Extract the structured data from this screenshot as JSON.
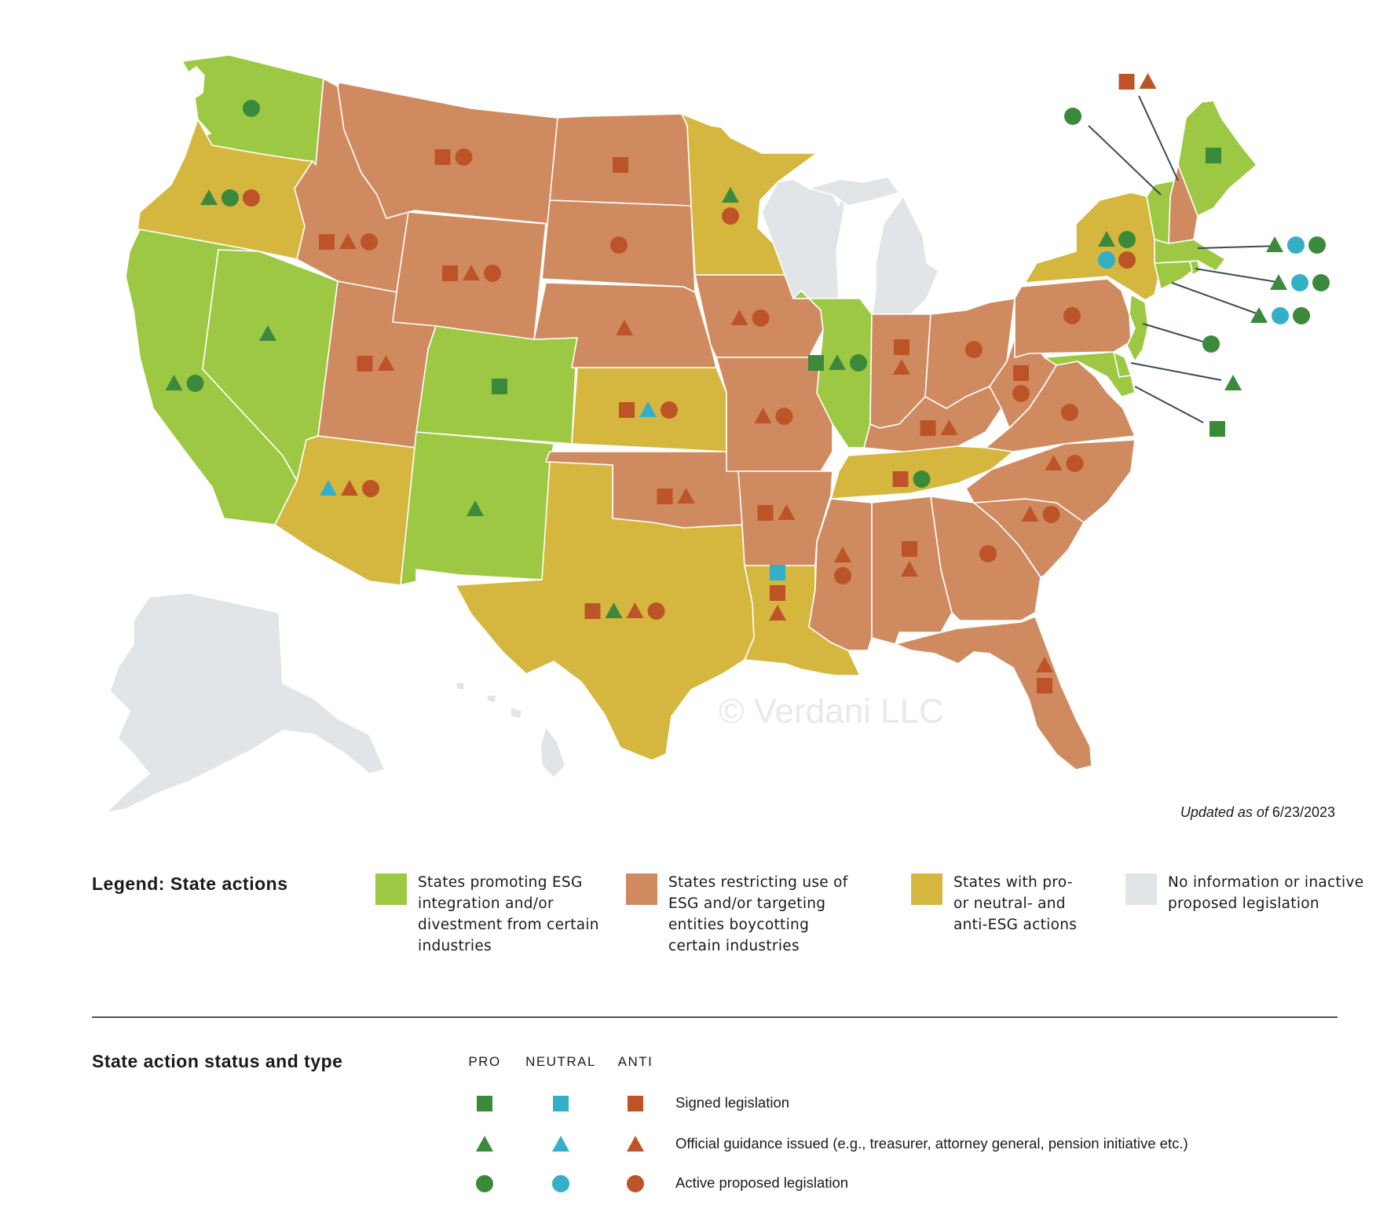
{
  "colors": {
    "pro_state": "#9dc843",
    "anti_state": "#cf8a60",
    "mixed_state": "#d5b740",
    "no_info": "#e1e5e8",
    "pro_marker": "#3b8a3b",
    "neutral_marker": "#33b0c8",
    "anti_marker": "#bd5427",
    "leader_line": "#3b4a55",
    "state_border": "#ffffff"
  },
  "watermark": "© Verdani LLC",
  "updated": {
    "label": "Updated as of",
    "date": "6/23/2023"
  },
  "legend": {
    "title": "Legend: State actions",
    "items": [
      {
        "category": "pro",
        "color": "#9dc843",
        "lines": [
          "States promoting ESG",
          "integration and/or",
          "divestment from certain",
          "industries"
        ]
      },
      {
        "category": "anti",
        "color": "#cf8a60",
        "lines": [
          "States restricting use of",
          "ESG and/or targeting",
          "entities boycotting",
          "certain industries"
        ]
      },
      {
        "category": "mixed",
        "color": "#d5b740",
        "lines": [
          "States with pro-",
          "or neutral- and",
          "anti-ESG actions"
        ]
      },
      {
        "category": "none",
        "color": "#e1e5e8",
        "lines": [
          "No information or inactive",
          "proposed legislation"
        ]
      }
    ]
  },
  "status": {
    "title": "State action status and type",
    "columns": [
      {
        "label": "PRO",
        "color": "#3b8a3b"
      },
      {
        "label": "NEUTRAL",
        "color": "#33b0c8"
      },
      {
        "label": "ANTI",
        "color": "#bd5427"
      }
    ],
    "rows": [
      {
        "shape": "square",
        "label": "Signed legislation"
      },
      {
        "shape": "triangle",
        "label": "Official guidance issued (e.g., treasurer, attorney general, pension initiative etc.)"
      },
      {
        "shape": "circle",
        "label": "Active proposed legislation"
      }
    ]
  },
  "states": [
    {
      "name": "Washington",
      "category": "pro",
      "markers": [
        "pro-circle"
      ]
    },
    {
      "name": "Oregon",
      "category": "mixed",
      "markers": [
        "pro-triangle",
        "pro-circle",
        "anti-circle"
      ]
    },
    {
      "name": "California",
      "category": "pro",
      "markers": [
        "pro-triangle",
        "pro-circle"
      ]
    },
    {
      "name": "Nevada",
      "category": "pro",
      "markers": [
        "pro-triangle"
      ]
    },
    {
      "name": "Idaho",
      "category": "anti",
      "markers": [
        "anti-square",
        "anti-triangle",
        "anti-circle"
      ]
    },
    {
      "name": "Montana",
      "category": "anti",
      "markers": [
        "anti-square",
        "anti-circle"
      ]
    },
    {
      "name": "Wyoming",
      "category": "anti",
      "markers": [
        "anti-square",
        "anti-triangle",
        "anti-circle"
      ]
    },
    {
      "name": "Utah",
      "category": "anti",
      "markers": [
        "anti-square",
        "anti-triangle"
      ]
    },
    {
      "name": "Arizona",
      "category": "mixed",
      "markers": [
        "neutral-triangle",
        "anti-triangle",
        "anti-circle"
      ]
    },
    {
      "name": "Colorado",
      "category": "pro",
      "markers": [
        "pro-square"
      ]
    },
    {
      "name": "New Mexico",
      "category": "pro",
      "markers": [
        "pro-triangle"
      ]
    },
    {
      "name": "North Dakota",
      "category": "anti",
      "markers": [
        "anti-square"
      ]
    },
    {
      "name": "South Dakota",
      "category": "anti",
      "markers": [
        "anti-circle"
      ]
    },
    {
      "name": "Nebraska",
      "category": "anti",
      "markers": [
        "anti-triangle"
      ]
    },
    {
      "name": "Kansas",
      "category": "mixed",
      "markers": [
        "anti-square",
        "neutral-triangle",
        "anti-circle"
      ]
    },
    {
      "name": "Oklahoma",
      "category": "anti",
      "markers": [
        "anti-square",
        "anti-triangle"
      ]
    },
    {
      "name": "Texas",
      "category": "mixed",
      "markers": [
        "anti-square",
        "pro-triangle",
        "anti-triangle",
        "anti-circle"
      ]
    },
    {
      "name": "Minnesota",
      "category": "mixed",
      "markers": [
        "pro-triangle",
        "anti-circle"
      ]
    },
    {
      "name": "Iowa",
      "category": "anti",
      "markers": [
        "anti-triangle",
        "anti-circle"
      ]
    },
    {
      "name": "Missouri",
      "category": "anti",
      "markers": [
        "anti-triangle",
        "anti-circle"
      ]
    },
    {
      "name": "Arkansas",
      "category": "anti",
      "markers": [
        "anti-square",
        "anti-triangle"
      ]
    },
    {
      "name": "Louisiana",
      "category": "mixed",
      "markers": [
        "neutral-square",
        "anti-square",
        "anti-triangle"
      ]
    },
    {
      "name": "Wisconsin",
      "category": "none",
      "markers": []
    },
    {
      "name": "Michigan",
      "category": "none",
      "markers": []
    },
    {
      "name": "Illinois",
      "category": "pro",
      "markers": [
        "pro-square",
        "pro-triangle",
        "pro-circle"
      ]
    },
    {
      "name": "Indiana",
      "category": "anti",
      "markers": [
        "anti-square",
        "anti-triangle"
      ]
    },
    {
      "name": "Ohio",
      "category": "anti",
      "markers": [
        "anti-circle"
      ]
    },
    {
      "name": "Kentucky",
      "category": "anti",
      "markers": [
        "anti-square",
        "anti-triangle"
      ]
    },
    {
      "name": "Tennessee",
      "category": "mixed",
      "markers": [
        "anti-square",
        "pro-circle"
      ]
    },
    {
      "name": "Mississippi",
      "category": "anti",
      "markers": [
        "anti-triangle",
        "anti-circle"
      ]
    },
    {
      "name": "Alabama",
      "category": "anti",
      "markers": [
        "anti-square",
        "anti-triangle"
      ]
    },
    {
      "name": "Georgia",
      "category": "anti",
      "markers": [
        "anti-circle"
      ]
    },
    {
      "name": "Florida",
      "category": "anti",
      "markers": [
        "anti-triangle",
        "anti-square"
      ]
    },
    {
      "name": "South Carolina",
      "category": "anti",
      "markers": [
        "anti-triangle",
        "anti-circle"
      ]
    },
    {
      "name": "North Carolina",
      "category": "anti",
      "markers": [
        "anti-triangle",
        "anti-circle"
      ]
    },
    {
      "name": "Virginia",
      "category": "anti",
      "markers": [
        "anti-circle"
      ]
    },
    {
      "name": "West Virginia",
      "category": "anti",
      "markers": [
        "anti-square",
        "anti-circle"
      ]
    },
    {
      "name": "Pennsylvania",
      "category": "anti",
      "markers": [
        "anti-circle"
      ]
    },
    {
      "name": "New York",
      "category": "mixed",
      "markers": [
        "pro-triangle",
        "pro-circle",
        "neutral-circle",
        "anti-circle"
      ]
    },
    {
      "name": "Maine",
      "category": "pro",
      "markers": [
        "pro-square"
      ]
    },
    {
      "name": "New Hampshire",
      "category": "anti",
      "markers": [
        "anti-square",
        "anti-triangle"
      ]
    },
    {
      "name": "Vermont",
      "category": "pro",
      "markers": [
        "pro-circle"
      ]
    },
    {
      "name": "Massachusetts",
      "category": "pro",
      "markers": [
        "pro-triangle",
        "neutral-circle",
        "pro-circle"
      ]
    },
    {
      "name": "Rhode Island",
      "category": "pro",
      "markers": [
        "pro-triangle",
        "neutral-circle",
        "pro-circle"
      ]
    },
    {
      "name": "Connecticut",
      "category": "pro",
      "markers": [
        "pro-triangle",
        "neutral-circle",
        "pro-circle"
      ]
    },
    {
      "name": "New Jersey",
      "category": "pro",
      "markers": [
        "pro-circle"
      ]
    },
    {
      "name": "Delaware",
      "category": "pro",
      "markers": [
        "pro-triangle"
      ]
    },
    {
      "name": "Maryland",
      "category": "pro",
      "markers": [
        "pro-square"
      ]
    },
    {
      "name": "Alaska",
      "category": "none",
      "markers": []
    },
    {
      "name": "Hawaii",
      "category": "none",
      "markers": []
    }
  ]
}
